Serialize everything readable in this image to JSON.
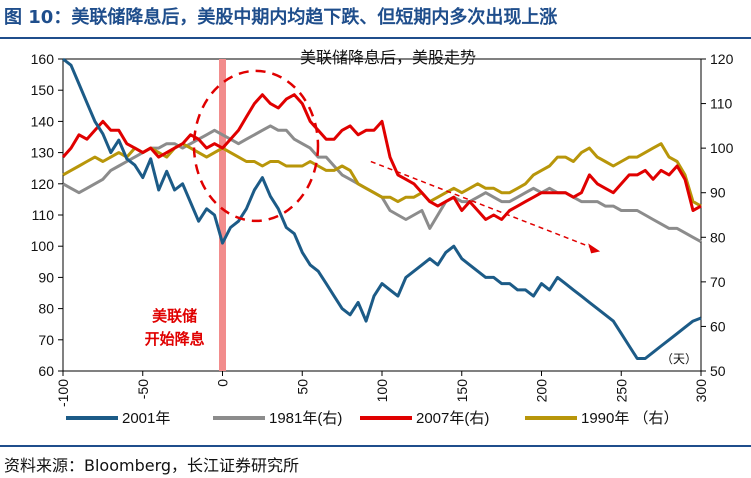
{
  "title": "图 10：美联储降息后，美股中期内均趋下跌、但短期内多次出现上涨",
  "source": "资料来源：Bloomberg，长江证券研究所",
  "colors": {
    "accent": "#1f4e8c",
    "s2001": "#1c5b87",
    "s1981": "#8c8c8c",
    "s2007": "#e00000",
    "s1990": "#b8960a",
    "marker": "#f28c8c"
  },
  "chart_data": {
    "type": "line",
    "title": "美联储降息后，美股走势",
    "xlim": [
      -100,
      300
    ],
    "xticks": [
      "-100",
      "-50",
      "0",
      "50",
      "100",
      "150",
      "200",
      "250",
      "300"
    ],
    "x_unit": "（天）",
    "ylim_left": [
      60,
      160
    ],
    "yticks_left": [
      "160",
      "150",
      "140",
      "130",
      "120",
      "110",
      "100",
      "90",
      "80",
      "70",
      "60"
    ],
    "ylim_right": [
      50,
      120
    ],
    "yticks_right": [
      "120",
      "110",
      "100",
      "90",
      "80",
      "70",
      "60",
      "50"
    ],
    "annotation": [
      "美联储",
      "开始降息"
    ],
    "legend": [
      "2001年",
      "1981年(右)",
      "2007年(右)",
      "1990年 （右）"
    ],
    "series": [
      {
        "name": "2001年",
        "axis": "left",
        "x": [
          -100,
          -95,
          -90,
          -85,
          -80,
          -75,
          -70,
          -65,
          -60,
          -55,
          -50,
          -45,
          -40,
          -35,
          -30,
          -25,
          -20,
          -15,
          -10,
          -5,
          0,
          5,
          10,
          15,
          20,
          25,
          30,
          35,
          40,
          45,
          50,
          55,
          60,
          65,
          70,
          75,
          80,
          85,
          90,
          95,
          100,
          105,
          110,
          115,
          120,
          125,
          130,
          135,
          140,
          145,
          150,
          155,
          160,
          165,
          170,
          175,
          180,
          185,
          190,
          195,
          200,
          205,
          210,
          215,
          220,
          225,
          230,
          235,
          240,
          245,
          250,
          255,
          260,
          265,
          270,
          275,
          280,
          285,
          290,
          295,
          300
        ],
        "values": [
          160,
          158,
          152,
          146,
          140,
          136,
          130,
          134,
          128,
          126,
          122,
          128,
          118,
          124,
          118,
          120,
          114,
          108,
          112,
          110,
          101,
          106,
          108,
          112,
          118,
          122,
          116,
          112,
          106,
          104,
          98,
          94,
          92,
          88,
          84,
          80,
          78,
          82,
          76,
          84,
          88,
          86,
          84,
          90,
          92,
          94,
          96,
          94,
          98,
          100,
          96,
          94,
          92,
          90,
          90,
          88,
          88,
          86,
          86,
          84,
          88,
          86,
          90,
          88,
          86,
          84,
          82,
          80,
          78,
          76,
          72,
          68,
          64,
          64,
          66,
          68,
          70,
          72,
          74,
          76,
          77
        ]
      },
      {
        "name": "1981年(右)",
        "axis": "right",
        "x": [
          -100,
          -95,
          -90,
          -85,
          -80,
          -75,
          -70,
          -65,
          -60,
          -55,
          -50,
          -45,
          -40,
          -35,
          -30,
          -25,
          -20,
          -15,
          -10,
          -5,
          0,
          5,
          10,
          15,
          20,
          25,
          30,
          35,
          40,
          45,
          50,
          55,
          60,
          65,
          70,
          75,
          80,
          85,
          90,
          95,
          100,
          105,
          110,
          115,
          120,
          125,
          130,
          135,
          140,
          145,
          150,
          155,
          160,
          165,
          170,
          175,
          180,
          185,
          190,
          195,
          200,
          205,
          210,
          215,
          220,
          225,
          230,
          235,
          240,
          245,
          250,
          255,
          260,
          265,
          270,
          275,
          280,
          285,
          290,
          295,
          300
        ],
        "values": [
          92,
          91,
          90,
          91,
          92,
          93,
          95,
          96,
          97,
          98,
          99,
          100,
          100,
          101,
          101,
          100,
          101,
          102,
          103,
          104,
          103,
          102,
          101,
          102,
          103,
          104,
          105,
          104,
          104,
          102,
          101,
          100,
          98,
          98,
          96,
          94,
          93,
          92,
          91,
          90,
          89,
          86,
          85,
          84,
          85,
          86,
          82,
          85,
          88,
          89,
          88,
          88,
          89,
          90,
          89,
          88,
          88,
          89,
          90,
          91,
          90,
          91,
          90,
          90,
          89,
          88,
          88,
          88,
          87,
          87,
          86,
          86,
          86,
          85,
          84,
          83,
          82,
          82,
          81,
          80,
          79
        ]
      },
      {
        "name": "2007年(右)",
        "axis": "right",
        "x": [
          -100,
          -95,
          -90,
          -85,
          -80,
          -75,
          -70,
          -65,
          -60,
          -55,
          -50,
          -45,
          -40,
          -35,
          -30,
          -25,
          -20,
          -15,
          -10,
          -5,
          0,
          5,
          10,
          15,
          20,
          25,
          30,
          35,
          40,
          45,
          50,
          55,
          60,
          65,
          70,
          75,
          80,
          85,
          90,
          95,
          100,
          105,
          110,
          115,
          120,
          125,
          130,
          135,
          140,
          145,
          150,
          155,
          160,
          165,
          170,
          175,
          180,
          185,
          190,
          195,
          200,
          205,
          210,
          215,
          220,
          225,
          230,
          235,
          240,
          245,
          250,
          255,
          260,
          265,
          270,
          275,
          280,
          285,
          290,
          295,
          300
        ],
        "values": [
          98,
          100,
          103,
          102,
          104,
          106,
          104,
          104,
          101,
          100,
          99,
          100,
          98,
          99,
          100,
          101,
          103,
          102,
          100,
          101,
          100,
          102,
          104,
          107,
          110,
          112,
          110,
          109,
          111,
          112,
          110,
          106,
          104,
          102,
          102,
          104,
          105,
          103,
          104,
          104,
          106,
          98,
          94,
          93,
          92,
          90,
          88,
          87,
          88,
          89,
          86,
          88,
          86,
          84,
          85,
          84,
          86,
          87,
          88,
          89,
          90,
          90,
          90,
          90,
          89,
          90,
          94,
          92,
          91,
          90,
          92,
          94,
          94,
          95,
          93,
          95,
          94,
          96,
          93,
          86,
          87
        ]
      },
      {
        "name": "1990年 （右）",
        "axis": "right",
        "x": [
          -100,
          -95,
          -90,
          -85,
          -80,
          -75,
          -70,
          -65,
          -60,
          -55,
          -50,
          -45,
          -40,
          -35,
          -30,
          -25,
          -20,
          -15,
          -10,
          -5,
          0,
          5,
          10,
          15,
          20,
          25,
          30,
          35,
          40,
          45,
          50,
          55,
          60,
          65,
          70,
          75,
          80,
          85,
          90,
          95,
          100,
          105,
          110,
          115,
          120,
          125,
          130,
          135,
          140,
          145,
          150,
          155,
          160,
          165,
          170,
          175,
          180,
          185,
          190,
          195,
          200,
          205,
          210,
          215,
          220,
          225,
          230,
          235,
          240,
          245,
          250,
          255,
          260,
          265,
          270,
          275,
          280,
          285,
          290,
          295,
          300
        ],
        "values": [
          94,
          95,
          96,
          97,
          98,
          97,
          98,
          99,
          98,
          100,
          99,
          100,
          99,
          98,
          100,
          101,
          100,
          99,
          98,
          99,
          100,
          99,
          98,
          97,
          97,
          96,
          97,
          97,
          96,
          96,
          96,
          97,
          96,
          95,
          95,
          96,
          95,
          92,
          91,
          90,
          89,
          89,
          88,
          89,
          89,
          90,
          88,
          89,
          90,
          91,
          90,
          91,
          92,
          91,
          91,
          90,
          90,
          91,
          92,
          94,
          95,
          96,
          98,
          98,
          97,
          99,
          100,
          98,
          97,
          96,
          97,
          98,
          98,
          99,
          100,
          101,
          98,
          97,
          94,
          88,
          87
        ]
      }
    ]
  }
}
